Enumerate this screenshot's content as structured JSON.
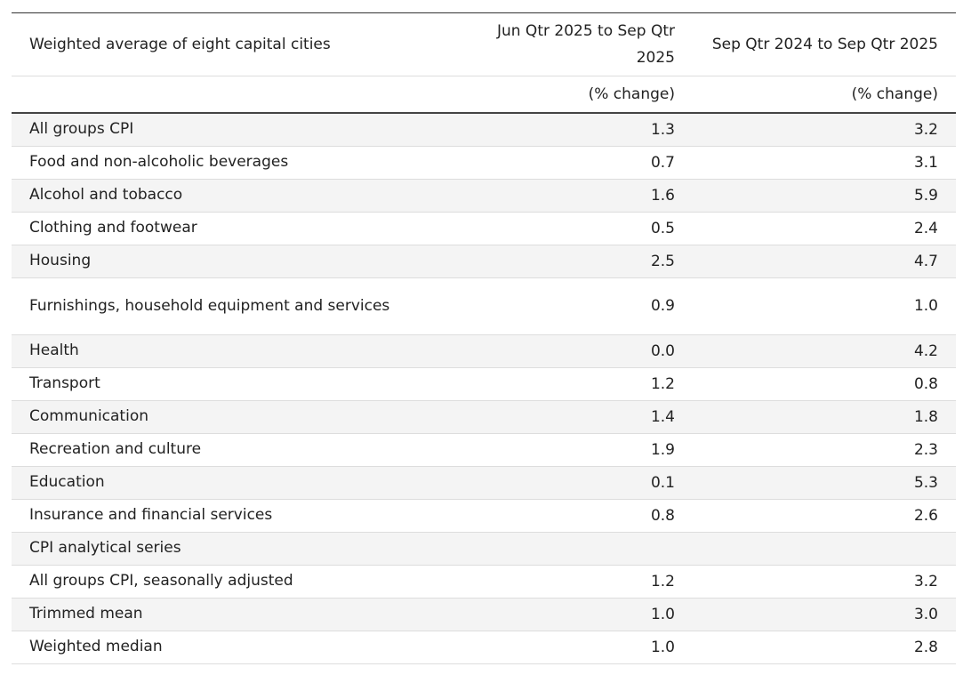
{
  "table": {
    "header": {
      "col1": "Weighted average of eight capital cities",
      "col2": "Jun Qtr 2025 to Sep Qtr 2025",
      "col3": "Sep Qtr 2024 to Sep Qtr 2025",
      "unit2": "(% change)",
      "unit3": "(% change)"
    },
    "rows": [
      {
        "label": "All groups CPI",
        "v1": "1.3",
        "v2": "3.2"
      },
      {
        "label": "Food and non-alcoholic beverages",
        "v1": "0.7",
        "v2": "3.1"
      },
      {
        "label": "Alcohol and tobacco",
        "v1": "1.6",
        "v2": "5.9"
      },
      {
        "label": "Clothing and footwear",
        "v1": "0.5",
        "v2": "2.4"
      },
      {
        "label": "Housing",
        "v1": "2.5",
        "v2": "4.7"
      },
      {
        "label": "Furnishings, household equipment and services",
        "v1": "0.9",
        "v2": "1.0"
      },
      {
        "label": "Health",
        "v1": "0.0",
        "v2": "4.2"
      },
      {
        "label": "Transport",
        "v1": "1.2",
        "v2": "0.8"
      },
      {
        "label": "Communication",
        "v1": "1.4",
        "v2": "1.8"
      },
      {
        "label": "Recreation and culture",
        "v1": "1.9",
        "v2": "2.3"
      },
      {
        "label": "Education",
        "v1": "0.1",
        "v2": "5.3"
      },
      {
        "label": "Insurance and financial services",
        "v1": "0.8",
        "v2": "2.6"
      },
      {
        "label": "CPI analytical series",
        "v1": "",
        "v2": ""
      },
      {
        "label": "All groups CPI, seasonally adjusted",
        "v1": "1.2",
        "v2": "3.2"
      },
      {
        "label": "Trimmed mean",
        "v1": "1.0",
        "v2": "3.0"
      },
      {
        "label": "Weighted median",
        "v1": "1.0",
        "v2": "2.8"
      }
    ]
  }
}
